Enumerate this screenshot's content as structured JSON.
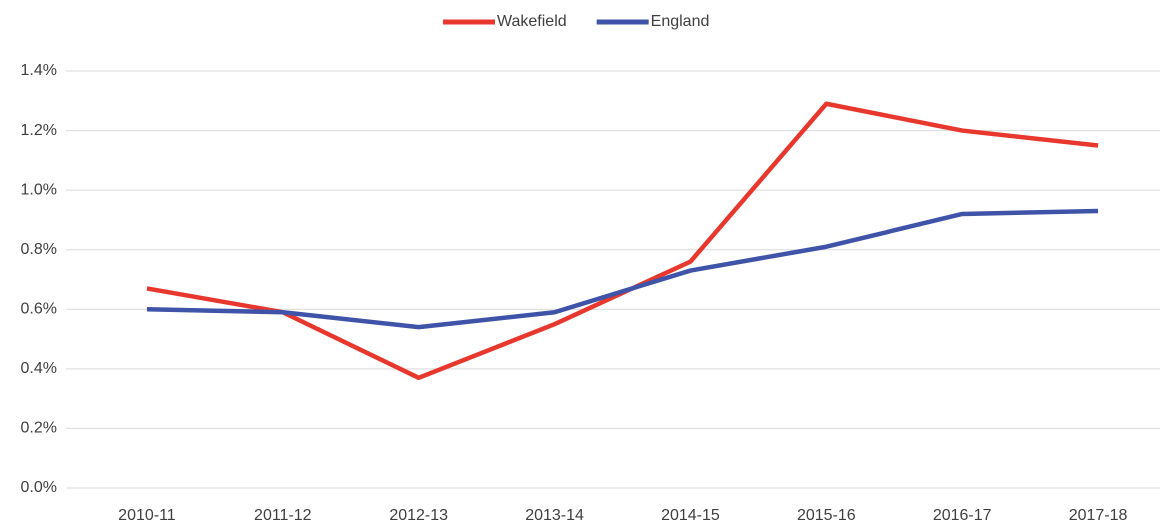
{
  "chart_data": {
    "type": "line",
    "categories": [
      "2010-11",
      "2011-12",
      "2012-13",
      "2013-14",
      "2014-15",
      "2015-16",
      "2016-17",
      "2017-18"
    ],
    "series": [
      {
        "name": "Wakefield",
        "color": "#e8382e",
        "values": [
          0.67,
          0.59,
          0.37,
          0.55,
          0.76,
          1.29,
          1.2,
          1.15
        ]
      },
      {
        "name": "England",
        "color": "#3f54a8",
        "values": [
          0.6,
          0.59,
          0.54,
          0.59,
          0.73,
          0.81,
          0.92,
          0.93
        ]
      }
    ],
    "ylim": [
      0,
      1.4
    ],
    "yticks": [
      {
        "value": 0,
        "label": "0.0%"
      },
      {
        "value": 0.2,
        "label": "0.2%"
      },
      {
        "value": 0.4,
        "label": "0.4%"
      },
      {
        "value": 0.6,
        "label": "0.6%"
      },
      {
        "value": 0.8,
        "label": "0.8%"
      },
      {
        "value": 1.0,
        "label": "1.0%"
      },
      {
        "value": 1.2,
        "label": "1.2%"
      },
      {
        "value": 1.4,
        "label": "1.4%"
      }
    ],
    "grid": true,
    "legend": "top"
  }
}
